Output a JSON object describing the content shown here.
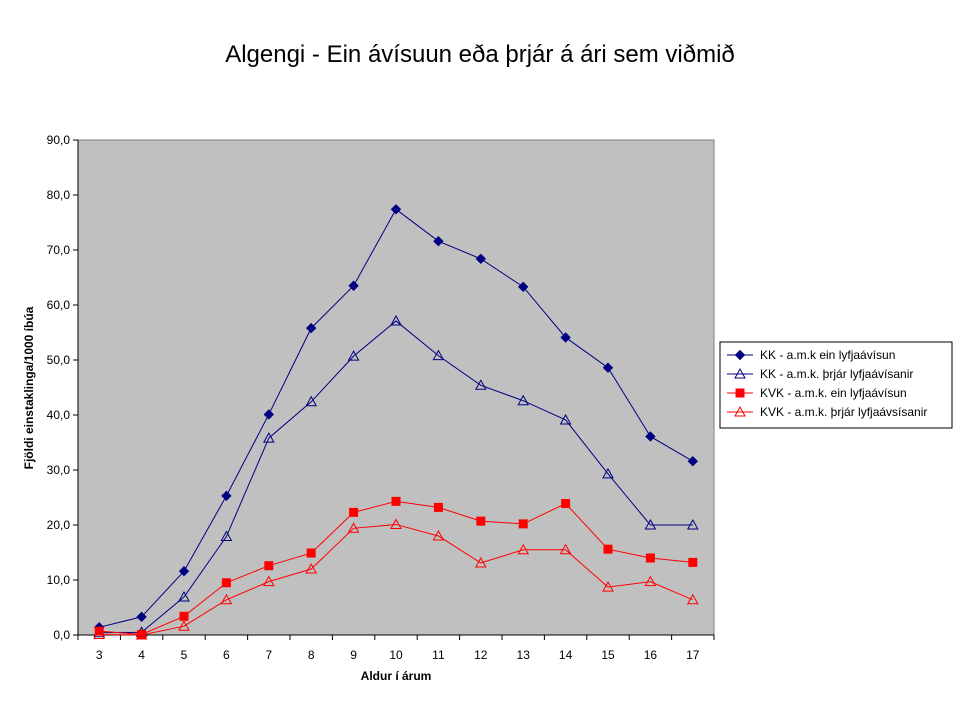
{
  "chart_data": {
    "type": "line",
    "title": "Algengi - Ein ávísuun eða þrjár á ári sem viðmið",
    "xlabel": "Aldur í árum",
    "ylabel": "Fjöldi einstaklinga/1000 íbúa",
    "categories": [
      "3",
      "4",
      "5",
      "6",
      "7",
      "8",
      "9",
      "10",
      "11",
      "12",
      "13",
      "14",
      "15",
      "16",
      "17"
    ],
    "ylim": [
      0,
      90
    ],
    "yticks": [
      "0,0",
      "10,0",
      "20,0",
      "30,0",
      "40,0",
      "50,0",
      "60,0",
      "70,0",
      "80,0",
      "90,0"
    ],
    "grid": false,
    "plot_background": "#c0c0c0",
    "legend_position": "right",
    "series": [
      {
        "name": "KK - a.m.k ein lyfjaávísun",
        "color": "#000080",
        "marker": "diamond",
        "values": [
          1.4,
          3.3,
          11.6,
          25.3,
          40.1,
          55.8,
          63.5,
          77.4,
          71.6,
          68.4,
          63.3,
          54.1,
          48.6,
          36.1,
          31.6
        ]
      },
      {
        "name": "KK - a.m.k. þrjár lyfjaávísanir",
        "color": "#000080",
        "marker": "triangle-open",
        "values": [
          0.4,
          0.5,
          6.9,
          17.9,
          35.8,
          42.4,
          50.7,
          57.1,
          50.8,
          45.4,
          42.6,
          39.1,
          29.3,
          20.0,
          20.0
        ]
      },
      {
        "name": "KVK - a.m.k. ein lyfjaávísun",
        "color": "#ff0000",
        "marker": "square",
        "values": [
          0.7,
          0.1,
          3.4,
          9.5,
          12.6,
          14.9,
          22.3,
          24.3,
          23.2,
          20.7,
          20.2,
          23.9,
          15.6,
          14.0,
          13.2
        ]
      },
      {
        "name": "KVK - a.m.k. þrjár lyfjaávsísanir",
        "color": "#ff0000",
        "marker": "triangle-open",
        "values": [
          0.1,
          0.0,
          1.6,
          6.4,
          9.7,
          12.0,
          19.4,
          20.1,
          18.0,
          13.1,
          15.5,
          15.5,
          8.7,
          9.7,
          6.4
        ]
      }
    ]
  }
}
